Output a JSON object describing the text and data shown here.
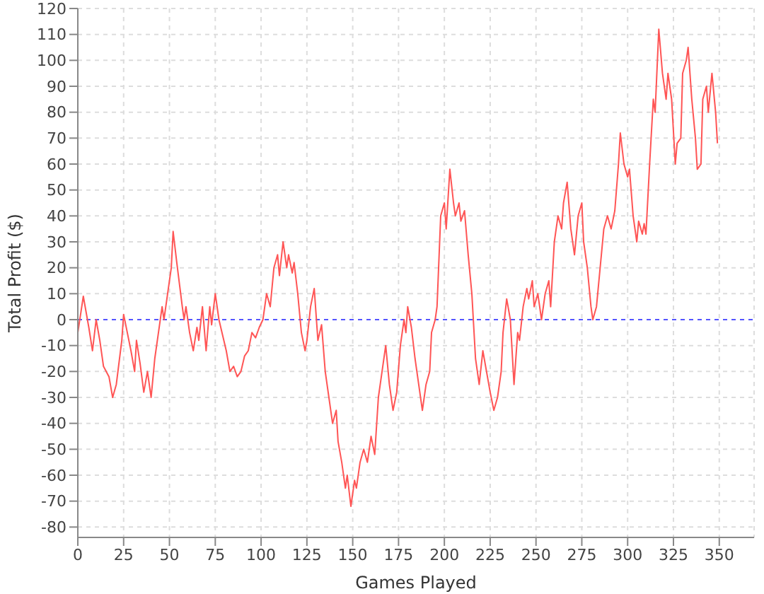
{
  "chart_data": {
    "type": "line",
    "xlabel": "Games Played",
    "ylabel": "Total Profit ($)",
    "x": [
      0,
      3,
      6,
      8,
      10,
      12,
      14,
      17,
      19,
      21,
      24,
      25,
      27,
      29,
      31,
      32,
      34,
      36,
      38,
      40,
      42,
      44,
      46,
      47,
      49,
      51,
      52,
      54,
      57,
      58,
      59,
      61,
      63,
      65,
      66,
      68,
      70,
      72,
      73,
      75,
      77,
      79,
      81,
      83,
      85,
      87,
      89,
      91,
      93,
      95,
      97,
      99,
      101,
      103,
      105,
      107,
      109,
      110,
      112,
      114,
      115,
      117,
      118,
      120,
      122,
      124,
      125,
      127,
      129,
      131,
      133,
      135,
      137,
      139,
      141,
      142,
      144,
      146,
      147,
      149,
      151,
      152,
      154,
      156,
      158,
      160,
      162,
      164,
      166,
      168,
      170,
      172,
      174,
      176,
      178,
      179,
      180,
      182,
      184,
      186,
      188,
      190,
      192,
      193,
      195,
      196,
      198,
      200,
      201,
      203,
      205,
      206,
      208,
      209,
      211,
      213,
      215,
      217,
      219,
      221,
      223,
      225,
      227,
      229,
      231,
      232,
      234,
      236,
      238,
      240,
      241,
      243,
      245,
      246,
      248,
      249,
      251,
      253,
      255,
      257,
      258,
      260,
      262,
      264,
      265,
      267,
      269,
      271,
      273,
      275,
      276,
      278,
      280,
      281,
      283,
      285,
      287,
      289,
      291,
      293,
      295,
      296,
      298,
      300,
      301,
      303,
      305,
      306,
      308,
      309,
      310,
      312,
      314,
      315,
      317,
      319,
      321,
      322,
      324,
      326,
      327,
      329,
      330,
      332,
      333,
      335,
      337,
      338,
      340,
      341,
      343,
      344,
      346,
      348,
      349
    ],
    "series": [
      {
        "color": "#ff5555",
        "values": [
          -5,
          9,
          -3,
          -12,
          0,
          -8,
          -18,
          -22,
          -30,
          -25,
          -8,
          2,
          -5,
          -12,
          -20,
          -8,
          -17,
          -28,
          -20,
          -30,
          -15,
          -5,
          5,
          0,
          10,
          20,
          34,
          22,
          5,
          0,
          5,
          -5,
          -12,
          -3,
          -8,
          5,
          -12,
          5,
          -2,
          10,
          0,
          -6,
          -12,
          -20,
          -18,
          -22,
          -20,
          -14,
          -12,
          -5,
          -7,
          -3,
          0,
          10,
          5,
          20,
          25,
          17,
          30,
          20,
          25,
          18,
          22,
          10,
          -5,
          -12,
          -8,
          5,
          12,
          -8,
          -2,
          -20,
          -30,
          -40,
          -35,
          -47,
          -55,
          -65,
          -60,
          -72,
          -62,
          -65,
          -55,
          -50,
          -55,
          -45,
          -52,
          -30,
          -20,
          -10,
          -25,
          -35,
          -28,
          -10,
          0,
          -5,
          5,
          -3,
          -15,
          -25,
          -35,
          -25,
          -20,
          -5,
          0,
          5,
          40,
          45,
          35,
          58,
          45,
          40,
          45,
          38,
          42,
          25,
          10,
          -15,
          -25,
          -12,
          -20,
          -28,
          -35,
          -30,
          -20,
          -5,
          8,
          0,
          -25,
          -5,
          -8,
          5,
          12,
          8,
          15,
          5,
          10,
          0,
          10,
          15,
          5,
          30,
          40,
          35,
          45,
          53,
          35,
          25,
          40,
          45,
          30,
          20,
          5,
          0,
          5,
          20,
          35,
          40,
          35,
          42,
          60,
          72,
          60,
          55,
          58,
          40,
          30,
          38,
          33,
          37,
          33,
          60,
          85,
          80,
          112,
          95,
          85,
          95,
          85,
          60,
          68,
          70,
          95,
          100,
          105,
          85,
          70,
          58,
          60,
          85,
          90,
          80,
          95,
          80,
          68
        ]
      }
    ],
    "xlim": [
      0,
      369
    ],
    "ylim": [
      -84,
      120
    ],
    "xticks": [
      0,
      25,
      50,
      75,
      100,
      125,
      150,
      175,
      200,
      225,
      250,
      275,
      300,
      325,
      350
    ],
    "yticks": [
      -80,
      -70,
      -60,
      -50,
      -40,
      -30,
      -20,
      -10,
      0,
      10,
      20,
      30,
      40,
      50,
      60,
      70,
      80,
      90,
      100,
      110,
      120
    ],
    "grid": true,
    "legend": false,
    "marker": "none",
    "line_style": "solid",
    "ref_lines": [
      {
        "axis": "y",
        "value": 0,
        "color": "#5555ff",
        "line_style": "dashed"
      }
    ]
  }
}
